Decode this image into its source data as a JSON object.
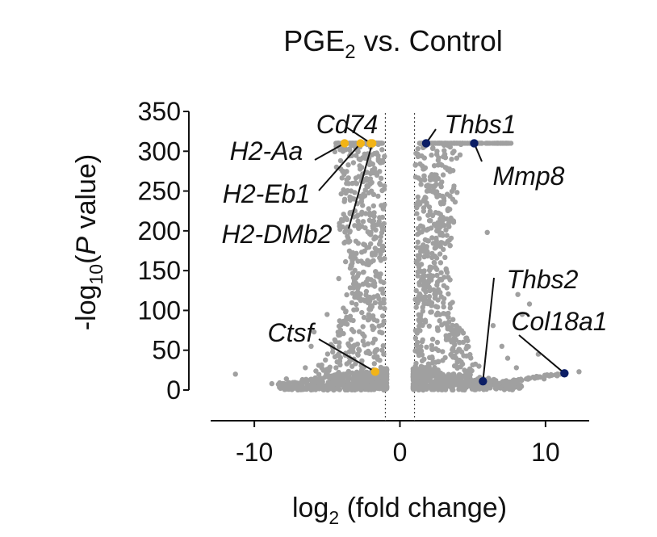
{
  "chart_data": {
    "type": "scatter",
    "title": {
      "main": "PGE",
      "sub": "2",
      "rest": " vs. Control"
    },
    "xlabel": {
      "main": "log",
      "sub": "2",
      "rest": " (fold change)"
    },
    "ylabel": {
      "main": "-log",
      "sub": "10",
      "mid": "(",
      "italic": "P",
      "rest": " value)"
    },
    "xlim": [
      -13,
      13
    ],
    "ylim": [
      0,
      350
    ],
    "x_ticks": [
      "-10",
      "0",
      "10"
    ],
    "x_tick_values": [
      -10,
      0,
      10
    ],
    "y_ticks": [
      "0",
      "50",
      "100",
      "150",
      "200",
      "250",
      "300",
      "350"
    ],
    "y_tick_values": [
      0,
      50,
      100,
      150,
      200,
      250,
      300,
      350
    ],
    "thresholds_x": [
      -1,
      1
    ],
    "colors": {
      "background_points": "#a0a0a0",
      "down_highlight": "#f2b418",
      "up_highlight": "#0d1f66",
      "axis": "#111111",
      "threshold": "#444444"
    },
    "highlighted_genes": [
      {
        "name": "Cd74",
        "x": -2.0,
        "y": 310,
        "group": "down"
      },
      {
        "name": "H2-Aa",
        "x": -3.8,
        "y": 310,
        "group": "down"
      },
      {
        "name": "H2-Eb1",
        "x": -2.7,
        "y": 310,
        "group": "down"
      },
      {
        "name": "H2-DMb2",
        "x": -1.9,
        "y": 310,
        "group": "down"
      },
      {
        "name": "Ctsf",
        "x": -1.7,
        "y": 23,
        "group": "down"
      },
      {
        "name": "Thbs1",
        "x": 1.8,
        "y": 310,
        "group": "up"
      },
      {
        "name": "Mmp8",
        "x": 5.1,
        "y": 310,
        "group": "up"
      },
      {
        "name": "Thbs2",
        "x": 5.7,
        "y": 11,
        "group": "up"
      },
      {
        "name": "Col18a1",
        "x": 11.3,
        "y": 21,
        "group": "up"
      }
    ]
  }
}
